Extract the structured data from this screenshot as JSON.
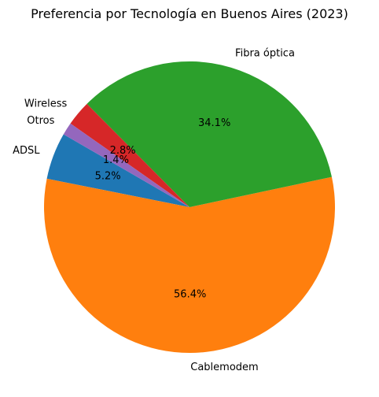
{
  "chart_data": {
    "type": "pie",
    "title": "Preferencia por Tecnología en Buenos Aires (2023)",
    "categories": [
      "ADSL",
      "Cablemodem",
      "Fibra óptica",
      "Wireless",
      "Otros"
    ],
    "values": [
      5.2,
      56.4,
      34.1,
      2.8,
      1.4
    ],
    "value_labels": [
      "5.2%",
      "56.4%",
      "34.1%",
      "2.8%",
      "1.4%"
    ],
    "colors": [
      "#1f77b4",
      "#ff7f0e",
      "#2ca02c",
      "#d62728",
      "#9467bd"
    ],
    "start_angle_deg": 150,
    "direction": "counterclockwise",
    "legend": "none"
  }
}
